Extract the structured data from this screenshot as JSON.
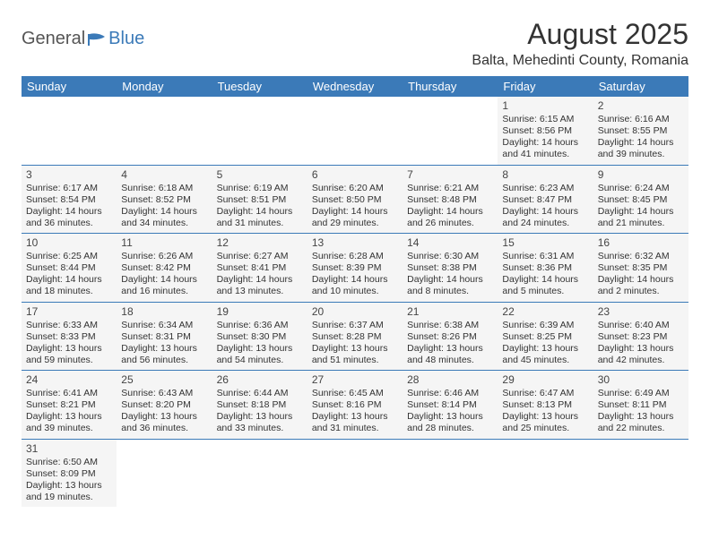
{
  "logo": {
    "text1": "General",
    "text2": "Blue"
  },
  "title": "August 2025",
  "location": "Balta, Mehedinti County, Romania",
  "colors": {
    "header_bg": "#3b7ab8",
    "header_text": "#ffffff",
    "cell_bg": "#f5f5f5",
    "border": "#3b7ab8",
    "text": "#333333"
  },
  "day_headers": [
    "Sunday",
    "Monday",
    "Tuesday",
    "Wednesday",
    "Thursday",
    "Friday",
    "Saturday"
  ],
  "weeks": [
    [
      {
        "empty": true
      },
      {
        "empty": true
      },
      {
        "empty": true
      },
      {
        "empty": true
      },
      {
        "empty": true
      },
      {
        "n": "1",
        "sunrise": "Sunrise: 6:15 AM",
        "sunset": "Sunset: 8:56 PM",
        "daylight": "Daylight: 14 hours and 41 minutes."
      },
      {
        "n": "2",
        "sunrise": "Sunrise: 6:16 AM",
        "sunset": "Sunset: 8:55 PM",
        "daylight": "Daylight: 14 hours and 39 minutes."
      }
    ],
    [
      {
        "n": "3",
        "sunrise": "Sunrise: 6:17 AM",
        "sunset": "Sunset: 8:54 PM",
        "daylight": "Daylight: 14 hours and 36 minutes."
      },
      {
        "n": "4",
        "sunrise": "Sunrise: 6:18 AM",
        "sunset": "Sunset: 8:52 PM",
        "daylight": "Daylight: 14 hours and 34 minutes."
      },
      {
        "n": "5",
        "sunrise": "Sunrise: 6:19 AM",
        "sunset": "Sunset: 8:51 PM",
        "daylight": "Daylight: 14 hours and 31 minutes."
      },
      {
        "n": "6",
        "sunrise": "Sunrise: 6:20 AM",
        "sunset": "Sunset: 8:50 PM",
        "daylight": "Daylight: 14 hours and 29 minutes."
      },
      {
        "n": "7",
        "sunrise": "Sunrise: 6:21 AM",
        "sunset": "Sunset: 8:48 PM",
        "daylight": "Daylight: 14 hours and 26 minutes."
      },
      {
        "n": "8",
        "sunrise": "Sunrise: 6:23 AM",
        "sunset": "Sunset: 8:47 PM",
        "daylight": "Daylight: 14 hours and 24 minutes."
      },
      {
        "n": "9",
        "sunrise": "Sunrise: 6:24 AM",
        "sunset": "Sunset: 8:45 PM",
        "daylight": "Daylight: 14 hours and 21 minutes."
      }
    ],
    [
      {
        "n": "10",
        "sunrise": "Sunrise: 6:25 AM",
        "sunset": "Sunset: 8:44 PM",
        "daylight": "Daylight: 14 hours and 18 minutes."
      },
      {
        "n": "11",
        "sunrise": "Sunrise: 6:26 AM",
        "sunset": "Sunset: 8:42 PM",
        "daylight": "Daylight: 14 hours and 16 minutes."
      },
      {
        "n": "12",
        "sunrise": "Sunrise: 6:27 AM",
        "sunset": "Sunset: 8:41 PM",
        "daylight": "Daylight: 14 hours and 13 minutes."
      },
      {
        "n": "13",
        "sunrise": "Sunrise: 6:28 AM",
        "sunset": "Sunset: 8:39 PM",
        "daylight": "Daylight: 14 hours and 10 minutes."
      },
      {
        "n": "14",
        "sunrise": "Sunrise: 6:30 AM",
        "sunset": "Sunset: 8:38 PM",
        "daylight": "Daylight: 14 hours and 8 minutes."
      },
      {
        "n": "15",
        "sunrise": "Sunrise: 6:31 AM",
        "sunset": "Sunset: 8:36 PM",
        "daylight": "Daylight: 14 hours and 5 minutes."
      },
      {
        "n": "16",
        "sunrise": "Sunrise: 6:32 AM",
        "sunset": "Sunset: 8:35 PM",
        "daylight": "Daylight: 14 hours and 2 minutes."
      }
    ],
    [
      {
        "n": "17",
        "sunrise": "Sunrise: 6:33 AM",
        "sunset": "Sunset: 8:33 PM",
        "daylight": "Daylight: 13 hours and 59 minutes."
      },
      {
        "n": "18",
        "sunrise": "Sunrise: 6:34 AM",
        "sunset": "Sunset: 8:31 PM",
        "daylight": "Daylight: 13 hours and 56 minutes."
      },
      {
        "n": "19",
        "sunrise": "Sunrise: 6:36 AM",
        "sunset": "Sunset: 8:30 PM",
        "daylight": "Daylight: 13 hours and 54 minutes."
      },
      {
        "n": "20",
        "sunrise": "Sunrise: 6:37 AM",
        "sunset": "Sunset: 8:28 PM",
        "daylight": "Daylight: 13 hours and 51 minutes."
      },
      {
        "n": "21",
        "sunrise": "Sunrise: 6:38 AM",
        "sunset": "Sunset: 8:26 PM",
        "daylight": "Daylight: 13 hours and 48 minutes."
      },
      {
        "n": "22",
        "sunrise": "Sunrise: 6:39 AM",
        "sunset": "Sunset: 8:25 PM",
        "daylight": "Daylight: 13 hours and 45 minutes."
      },
      {
        "n": "23",
        "sunrise": "Sunrise: 6:40 AM",
        "sunset": "Sunset: 8:23 PM",
        "daylight": "Daylight: 13 hours and 42 minutes."
      }
    ],
    [
      {
        "n": "24",
        "sunrise": "Sunrise: 6:41 AM",
        "sunset": "Sunset: 8:21 PM",
        "daylight": "Daylight: 13 hours and 39 minutes."
      },
      {
        "n": "25",
        "sunrise": "Sunrise: 6:43 AM",
        "sunset": "Sunset: 8:20 PM",
        "daylight": "Daylight: 13 hours and 36 minutes."
      },
      {
        "n": "26",
        "sunrise": "Sunrise: 6:44 AM",
        "sunset": "Sunset: 8:18 PM",
        "daylight": "Daylight: 13 hours and 33 minutes."
      },
      {
        "n": "27",
        "sunrise": "Sunrise: 6:45 AM",
        "sunset": "Sunset: 8:16 PM",
        "daylight": "Daylight: 13 hours and 31 minutes."
      },
      {
        "n": "28",
        "sunrise": "Sunrise: 6:46 AM",
        "sunset": "Sunset: 8:14 PM",
        "daylight": "Daylight: 13 hours and 28 minutes."
      },
      {
        "n": "29",
        "sunrise": "Sunrise: 6:47 AM",
        "sunset": "Sunset: 8:13 PM",
        "daylight": "Daylight: 13 hours and 25 minutes."
      },
      {
        "n": "30",
        "sunrise": "Sunrise: 6:49 AM",
        "sunset": "Sunset: 8:11 PM",
        "daylight": "Daylight: 13 hours and 22 minutes."
      }
    ],
    [
      {
        "n": "31",
        "sunrise": "Sunrise: 6:50 AM",
        "sunset": "Sunset: 8:09 PM",
        "daylight": "Daylight: 13 hours and 19 minutes."
      },
      {
        "empty": true
      },
      {
        "empty": true
      },
      {
        "empty": true
      },
      {
        "empty": true
      },
      {
        "empty": true
      },
      {
        "empty": true
      }
    ]
  ]
}
